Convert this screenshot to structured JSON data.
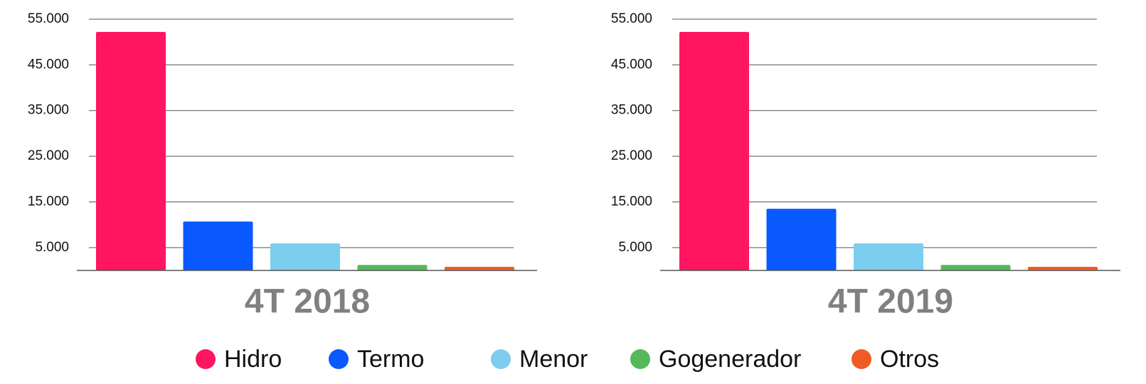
{
  "legend": {
    "items": [
      {
        "name": "Hidro",
        "color": "#ff1560"
      },
      {
        "name": "Termo",
        "color": "#0a59ff"
      },
      {
        "name": "Menor",
        "color": "#7ccdee"
      },
      {
        "name": "Gogenerador",
        "color": "#55b85a"
      },
      {
        "name": "Otros",
        "color": "#f05a24"
      }
    ]
  },
  "chart_data": [
    {
      "type": "bar",
      "title": "4T 2018",
      "values": [
        52200,
        10700,
        5900,
        1200,
        800
      ],
      "ylim": [
        0,
        55000
      ],
      "yticks": [
        {
          "value": 5000,
          "label": "5.000"
        },
        {
          "value": 15000,
          "label": "15.000"
        },
        {
          "value": 25000,
          "label": "25.000"
        },
        {
          "value": 35000,
          "label": "35.000"
        },
        {
          "value": 45000,
          "label": "45.000"
        },
        {
          "value": 55000,
          "label": "55.000"
        }
      ],
      "grid": true
    },
    {
      "type": "bar",
      "title": "4T 2019",
      "values": [
        52200,
        13500,
        5900,
        1200,
        800
      ],
      "ylim": [
        0,
        55000
      ],
      "yticks": [
        {
          "value": 5000,
          "label": "5.000"
        },
        {
          "value": 15000,
          "label": "15.000"
        },
        {
          "value": 25000,
          "label": "25.000"
        },
        {
          "value": 35000,
          "label": "35.000"
        },
        {
          "value": 45000,
          "label": "45.000"
        },
        {
          "value": 55000,
          "label": "55.000"
        }
      ],
      "grid": true
    }
  ]
}
